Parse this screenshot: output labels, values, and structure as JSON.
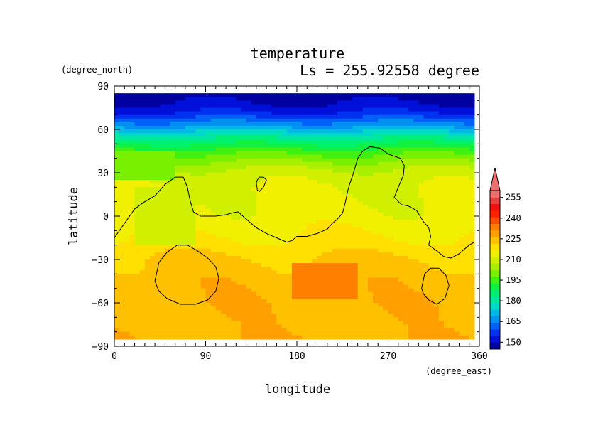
{
  "chart_data": {
    "type": "heatmap",
    "title": "temperature",
    "subtitle": "Ls = 255.92558 degree",
    "xlabel": "longitude",
    "ylabel": "latitude",
    "xunits": "(degree_east)",
    "yunits": "(degree_north)",
    "xlim": [
      0,
      360
    ],
    "ylim": [
      -90,
      90
    ],
    "data_extent": {
      "lon": [
        0,
        355
      ],
      "lat": [
        -85,
        85
      ]
    },
    "xticks": [
      "0",
      "90",
      "180",
      "270",
      "360"
    ],
    "yticks": [
      "90",
      "60",
      "30",
      "0",
      "−30",
      "−60",
      "−90"
    ],
    "colorbar": {
      "levels": [
        145,
        150,
        155,
        160,
        165,
        170,
        175,
        180,
        185,
        190,
        195,
        200,
        205,
        210,
        215,
        220,
        225,
        230,
        235,
        240,
        245,
        250,
        255,
        260
      ],
      "labels": [
        "150",
        "165",
        "180",
        "195",
        "210",
        "225",
        "240",
        "255"
      ],
      "colors": [
        "#0000a0",
        "#0010d8",
        "#0030f0",
        "#0060f8",
        "#0090f0",
        "#00b8e8",
        "#00d8c8",
        "#00e8a0",
        "#00f070",
        "#10f040",
        "#40f010",
        "#78f000",
        "#a8f000",
        "#d0f000",
        "#f0f000",
        "#ffe000",
        "#ffc000",
        "#ffa000",
        "#ff8000",
        "#ff5000",
        "#ff2000",
        "#f01010",
        "#e84040",
        "#f07070"
      ],
      "extend": "max"
    },
    "latitude_profile": [
      {
        "lat": 85,
        "value": 147
      },
      {
        "lat": 80,
        "value": 149
      },
      {
        "lat": 75,
        "value": 152
      },
      {
        "lat": 70,
        "value": 157
      },
      {
        "lat": 65,
        "value": 165
      },
      {
        "lat": 60,
        "value": 173
      },
      {
        "lat": 55,
        "value": 182
      },
      {
        "lat": 50,
        "value": 190
      },
      {
        "lat": 45,
        "value": 197
      },
      {
        "lat": 40,
        "value": 203
      },
      {
        "lat": 35,
        "value": 208
      },
      {
        "lat": 30,
        "value": 212
      },
      {
        "lat": 20,
        "value": 215
      },
      {
        "lat": 10,
        "value": 216
      },
      {
        "lat": 0,
        "value": 217
      },
      {
        "lat": -10,
        "value": 219
      },
      {
        "lat": -20,
        "value": 222
      },
      {
        "lat": -30,
        "value": 226
      },
      {
        "lat": -45,
        "value": 228
      },
      {
        "lat": -60,
        "value": 229
      },
      {
        "lat": -75,
        "value": 228
      },
      {
        "lat": -85,
        "value": 229
      }
    ],
    "regions": [
      {
        "value": 237,
        "lon": [
          175,
          240
        ],
        "lat": [
          -58,
          -32
        ]
      },
      {
        "value": 212,
        "lon": [
          20,
          80
        ],
        "lat": [
          -20,
          20
        ]
      },
      {
        "value": 202,
        "lon": [
          0,
          60
        ],
        "lat": [
          25,
          45
        ]
      }
    ],
    "contours": [
      [
        [
          0,
          -15
        ],
        [
          10,
          -5
        ],
        [
          20,
          5
        ],
        [
          30,
          10
        ],
        [
          40,
          14
        ],
        [
          50,
          22
        ],
        [
          60,
          27
        ],
        [
          68,
          27
        ],
        [
          72,
          20
        ],
        [
          75,
          10
        ],
        [
          78,
          3
        ],
        [
          85,
          0
        ],
        [
          100,
          0
        ],
        [
          110,
          1
        ],
        [
          115,
          2
        ],
        [
          122,
          3
        ],
        [
          130,
          -2
        ],
        [
          140,
          -8
        ],
        [
          150,
          -12
        ],
        [
          160,
          -15
        ],
        [
          170,
          -18
        ],
        [
          175,
          -17
        ],
        [
          180,
          -14
        ],
        [
          190,
          -14
        ],
        [
          200,
          -12
        ],
        [
          210,
          -9
        ],
        [
          215,
          -5
        ],
        [
          220,
          -2
        ],
        [
          225,
          2
        ],
        [
          228,
          10
        ],
        [
          230,
          17
        ],
        [
          232,
          22
        ],
        [
          235,
          28
        ],
        [
          240,
          40
        ],
        [
          245,
          45
        ],
        [
          252,
          48
        ],
        [
          262,
          47
        ],
        [
          270,
          43
        ],
        [
          278,
          41
        ],
        [
          282,
          40
        ],
        [
          286,
          35
        ],
        [
          285,
          28
        ],
        [
          280,
          20
        ],
        [
          276,
          13
        ],
        [
          283,
          8
        ],
        [
          290,
          7
        ],
        [
          298,
          4
        ],
        [
          305,
          -4
        ],
        [
          310,
          -8
        ],
        [
          312,
          -14
        ],
        [
          310,
          -20
        ],
        [
          318,
          -24
        ],
        [
          325,
          -28
        ],
        [
          332,
          -29
        ],
        [
          340,
          -26
        ],
        [
          350,
          -20
        ],
        [
          355,
          -18
        ]
      ],
      [
        [
          140,
          23
        ],
        [
          141,
          18
        ],
        [
          143,
          17
        ],
        [
          147,
          20
        ],
        [
          150,
          25
        ],
        [
          147,
          27
        ],
        [
          143,
          27
        ],
        [
          141,
          25
        ],
        [
          140,
          23
        ]
      ],
      [
        [
          40,
          -45
        ],
        [
          44,
          -32
        ],
        [
          52,
          -25
        ],
        [
          62,
          -20
        ],
        [
          72,
          -20
        ],
        [
          82,
          -24
        ],
        [
          92,
          -29
        ],
        [
          100,
          -35
        ],
        [
          103,
          -43
        ],
        [
          100,
          -52
        ],
        [
          92,
          -58
        ],
        [
          80,
          -61
        ],
        [
          65,
          -61
        ],
        [
          52,
          -57
        ],
        [
          44,
          -52
        ],
        [
          40,
          -45
        ]
      ],
      [
        [
          303,
          -50
        ],
        [
          306,
          -40
        ],
        [
          312,
          -36
        ],
        [
          320,
          -36
        ],
        [
          327,
          -41
        ],
        [
          330,
          -48
        ],
        [
          326,
          -57
        ],
        [
          318,
          -61
        ],
        [
          310,
          -58
        ],
        [
          305,
          -54
        ],
        [
          303,
          -50
        ]
      ]
    ]
  }
}
